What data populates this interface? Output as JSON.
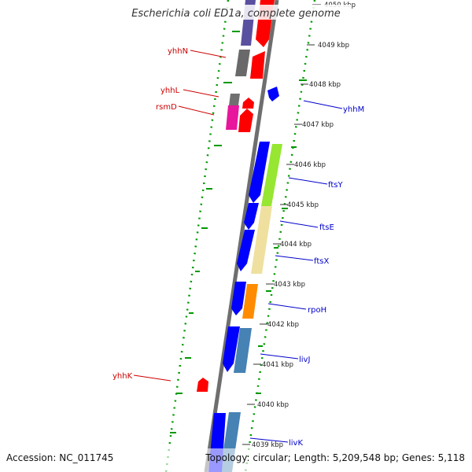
{
  "title": "Escherichia coli ED1a, complete genome",
  "accession": "Accession: NC_011745",
  "summary": "Topology: circular; Length: 5,209,548 bp; Genes: 5,118",
  "kbp_labels": [
    "4050 kbp",
    "4049 kbp",
    "4048 kbp",
    "4047 kbp",
    "4046 kbp",
    "4045 kbp",
    "4044 kbp",
    "4043 kbp",
    "4042 kbp",
    "4041 kbp",
    "4040 kbp",
    "4039 kbp"
  ],
  "genes_left": [
    {
      "name": "yhhN",
      "color": "#cc0000"
    },
    {
      "name": "yhhL",
      "color": "#cc0000"
    },
    {
      "name": "rsmD",
      "color": "#cc0000"
    },
    {
      "name": "yhhK",
      "color": "#cc0000"
    }
  ],
  "genes_right": [
    {
      "name": "yhhM",
      "color": "#0000cc"
    },
    {
      "name": "ftsY",
      "color": "#0000cc"
    },
    {
      "name": "ftsE",
      "color": "#0000cc"
    },
    {
      "name": "ftsX",
      "color": "#0000cc"
    },
    {
      "name": "rpoH",
      "color": "#0000cc"
    },
    {
      "name": "livJ",
      "color": "#0000cc"
    },
    {
      "name": "livK",
      "color": "#0000cc"
    }
  ],
  "colors": {
    "backbone": "#808080",
    "forward_strand_gene": "#0000ff",
    "reverse_strand_gene": "#ff0000",
    "gc_skew_dots": "#009900"
  }
}
